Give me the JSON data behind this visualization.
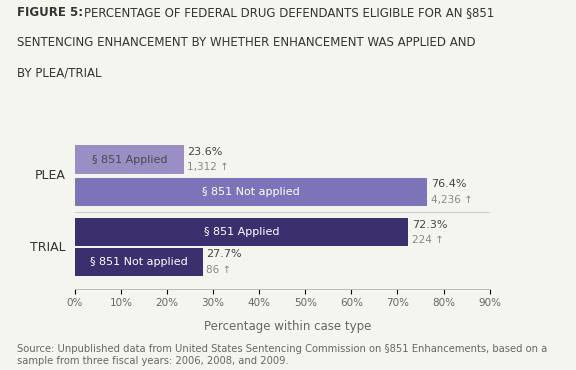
{
  "title_bold": "FIGURE 5: ",
  "title_rest": "PERCENTAGE OF FEDERAL DRUG DEFENDANTS ELIGIBLE FOR AN §851\nSENTENCING ENHANCEMENT BY WHETHER ENHANCEMENT WAS APPLIED AND\nBY PLEA/TRIAL",
  "bars": [
    {
      "group": "PLEA",
      "label": "§ 851 Applied",
      "value": 23.6,
      "count": "1,312",
      "color": "#9b8ec4",
      "text_color": "#4a4a4a"
    },
    {
      "group": "PLEA",
      "label": "§ 851 Not applied",
      "value": 76.4,
      "count": "4,236",
      "color": "#7b74b8",
      "text_color": "#ffffff"
    },
    {
      "group": "TRIAL",
      "label": "§ 851 Applied",
      "value": 72.3,
      "count": "224",
      "color": "#3b2f6e",
      "text_color": "#ffffff"
    },
    {
      "group": "TRIAL",
      "label": "§ 851 Not applied",
      "value": 27.7,
      "count": "86",
      "color": "#3b2f6e",
      "text_color": "#ffffff"
    }
  ],
  "xlabel": "Percentage within case type",
  "xlim": [
    0,
    90
  ],
  "xticks": [
    0,
    10,
    20,
    30,
    40,
    50,
    60,
    70,
    80,
    90
  ],
  "xticklabels": [
    "0%",
    "10%",
    "20%",
    "30%",
    "40%",
    "50%",
    "60%",
    "70%",
    "80%",
    "90%"
  ],
  "source_text": "Source: Unpublished data from United States Sentencing Commission on §851 Enhancements, based on a\nsample from three fiscal years: 2006, 2008, and 2009.",
  "background_color": "#f5f5f0",
  "bar_height": 0.32,
  "label_fontsize": 8.0,
  "annot_fontsize": 8.0,
  "xlabel_fontsize": 8.5,
  "source_fontsize": 7.2,
  "title_fontsize": 8.5,
  "group_label_fontsize": 9.0
}
